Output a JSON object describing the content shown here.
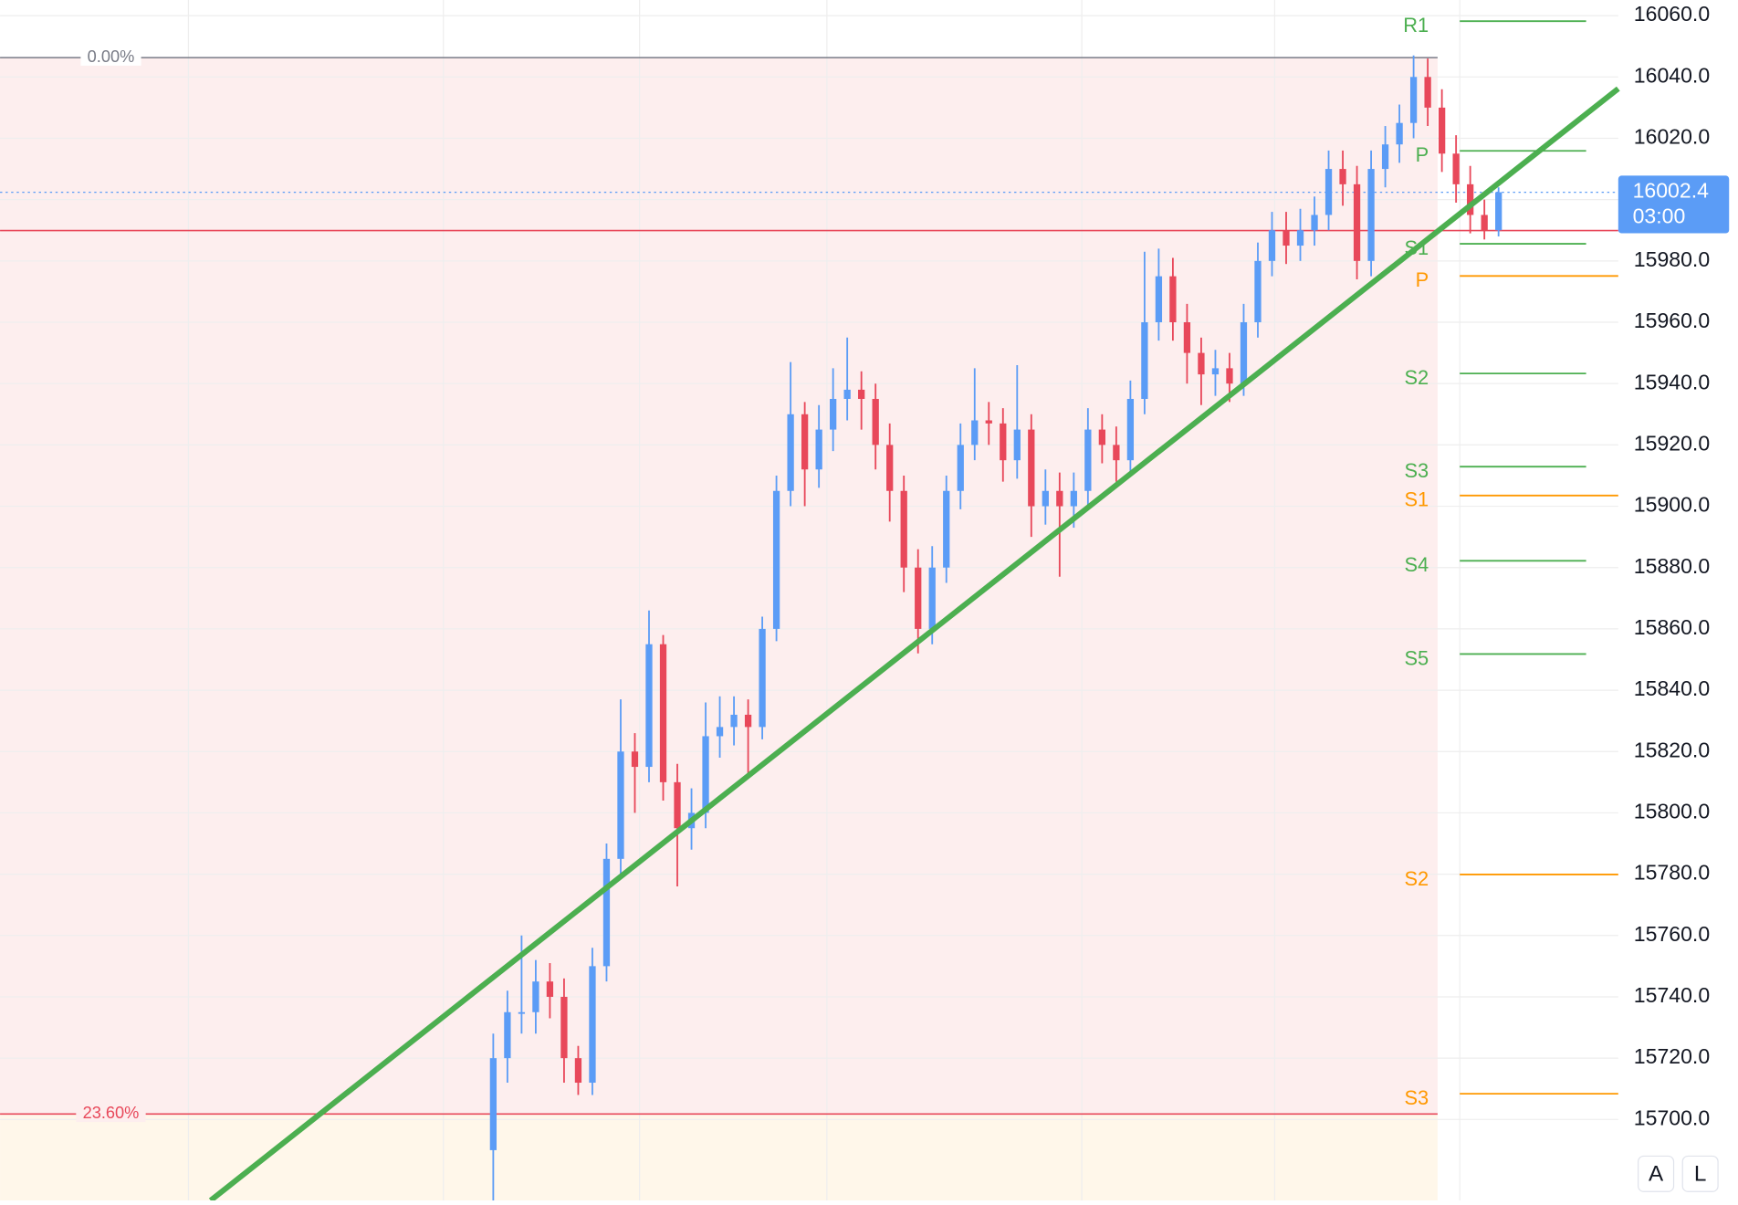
{
  "chart_data": {
    "type": "candlestick",
    "ylim": [
      15673.6,
      16065.1
    ],
    "yticks": [
      {
        "value": 15700,
        "label": "15700.0"
      },
      {
        "value": 15720,
        "label": "15720.0"
      },
      {
        "value": 15740,
        "label": "15740.0"
      },
      {
        "value": 15760,
        "label": "15760.0"
      },
      {
        "value": 15780,
        "label": "15780.0"
      },
      {
        "value": 15800,
        "label": "15800.0"
      },
      {
        "value": 15820,
        "label": "15820.0"
      },
      {
        "value": 15840,
        "label": "15840.0"
      },
      {
        "value": 15860,
        "label": "15860.0"
      },
      {
        "value": 15880,
        "label": "15880.0"
      },
      {
        "value": 15900,
        "label": "15900.0"
      },
      {
        "value": 15920,
        "label": "15920.0"
      },
      {
        "value": 15940,
        "label": "15940.0"
      },
      {
        "value": 15960,
        "label": "15960.0"
      },
      {
        "value": 15980,
        "label": "15980.0"
      },
      {
        "value": 16000,
        "label": "16000.0"
      },
      {
        "value": 16020,
        "label": "16020.0"
      },
      {
        "value": 16040,
        "label": "16040.0"
      },
      {
        "value": 16060,
        "label": "16060.0"
      }
    ],
    "grid": true,
    "up_color": "#5b9cf6",
    "down_color": "#e8485a",
    "open": [
      15690,
      15720,
      15735,
      15735,
      15745,
      15740,
      15720,
      15712,
      15750,
      15785,
      15820,
      15815,
      15855,
      15810,
      15795,
      15800,
      15825,
      15828,
      15832,
      15828,
      15860,
      15905,
      15930,
      15912,
      15925,
      15935,
      15938,
      15935,
      15920,
      15905,
      15880,
      15860,
      15880,
      15905,
      15920,
      15928,
      15927,
      15915,
      15925,
      15900,
      15905,
      15900,
      15905,
      15925,
      15920,
      15915,
      15935,
      15960,
      15975,
      15960,
      15950,
      15943,
      15945,
      15940,
      15960,
      15980,
      15990,
      15985,
      15990,
      15995,
      16010,
      16005,
      15980,
      16010,
      16018,
      16025,
      16040,
      16030,
      16015,
      16005,
      15995,
      15990
    ],
    "high": [
      15728,
      15742,
      15760,
      15752,
      15751,
      15746,
      15724,
      15756,
      15790,
      15837,
      15826,
      15866,
      15858,
      15816,
      15808,
      15836,
      15838,
      15838,
      15837,
      15864,
      15910,
      15947,
      15934,
      15933,
      15945,
      15955,
      15944,
      15940,
      15927,
      15910,
      15886,
      15887,
      15910,
      15927,
      15945,
      15934,
      15932,
      15946,
      15930,
      15912,
      15911,
      15911,
      15932,
      15930,
      15926,
      15941,
      15983,
      15984,
      15981,
      15966,
      15955,
      15951,
      15950,
      15966,
      15986,
      15996,
      15996,
      15997,
      16001,
      16016,
      16016,
      16011,
      16016,
      16024,
      16031,
      16047,
      16046,
      16036,
      16021,
      16011,
      16000,
      16004
    ],
    "low": [
      15672,
      15712,
      15728,
      15728,
      15733,
      15712,
      15708,
      15708,
      15745,
      15780,
      15800,
      15810,
      15804,
      15776,
      15788,
      15795,
      15818,
      15822,
      15812,
      15824,
      15856,
      15900,
      15900,
      15906,
      15918,
      15928,
      15925,
      15912,
      15895,
      15872,
      15852,
      15855,
      15875,
      15899,
      15915,
      15920,
      15908,
      15909,
      15890,
      15894,
      15877,
      15893,
      15900,
      15914,
      15908,
      15910,
      15930,
      15954,
      15954,
      15940,
      15933,
      15936,
      15934,
      15936,
      15955,
      15975,
      15979,
      15980,
      15985,
      15990,
      15998,
      15974,
      15975,
      16004,
      16012,
      16020,
      16024,
      16009,
      15999,
      15989,
      15987,
      15988
    ],
    "close": [
      15720,
      15735,
      15735,
      15745,
      15740,
      15720,
      15712,
      15750,
      15785,
      15820,
      15815,
      15855,
      15810,
      15795,
      15800,
      15825,
      15828,
      15832,
      15828,
      15860,
      15905,
      15930,
      15912,
      15925,
      15935,
      15938,
      15935,
      15920,
      15905,
      15880,
      15860,
      15880,
      15905,
      15920,
      15928,
      15927,
      15915,
      15925,
      15900,
      15905,
      15900,
      15905,
      15925,
      15920,
      15915,
      15935,
      15960,
      15975,
      15960,
      15950,
      15943,
      15945,
      15940,
      15960,
      15980,
      15990,
      15985,
      15990,
      15995,
      16010,
      16005,
      15980,
      16010,
      16018,
      16025,
      16040,
      16030,
      16015,
      16005,
      15995,
      15990,
      16002.4
    ],
    "last_price": 16002.4,
    "countdown": "03:00",
    "last_price_color": "#5b9cf6",
    "price_line": {
      "price": 15989.9,
      "color": "#e8485a"
    },
    "fib_levels": [
      {
        "label": "0.00%",
        "price": 16046.3,
        "color": "#787b86"
      },
      {
        "label": "23.60%",
        "price": 15701.8,
        "color": "#e8485a"
      }
    ],
    "trendline": {
      "start_price": 15673.6,
      "end_price": 16036.2,
      "color": "#4caf50"
    },
    "pivots": [
      {
        "color": "#4caf50",
        "levels": [
          {
            "label": "R1",
            "price": 16058.2
          },
          {
            "label": "P",
            "price": 16015.9
          },
          {
            "label": "S1",
            "price": 15985.6
          },
          {
            "label": "S2",
            "price": 15943.3
          },
          {
            "label": "S3",
            "price": 15912.9
          },
          {
            "label": "S4",
            "price": 15882.2
          },
          {
            "label": "S5",
            "price": 15851.8
          }
        ]
      },
      {
        "color": "#ff9800",
        "levels": [
          {
            "label": "P",
            "price": 15975.1
          },
          {
            "label": "S1",
            "price": 15903.5
          },
          {
            "label": "S2",
            "price": 15779.9
          },
          {
            "label": "S3",
            "price": 15708.4
          }
        ]
      }
    ],
    "buttons": [
      "A",
      "L"
    ]
  }
}
